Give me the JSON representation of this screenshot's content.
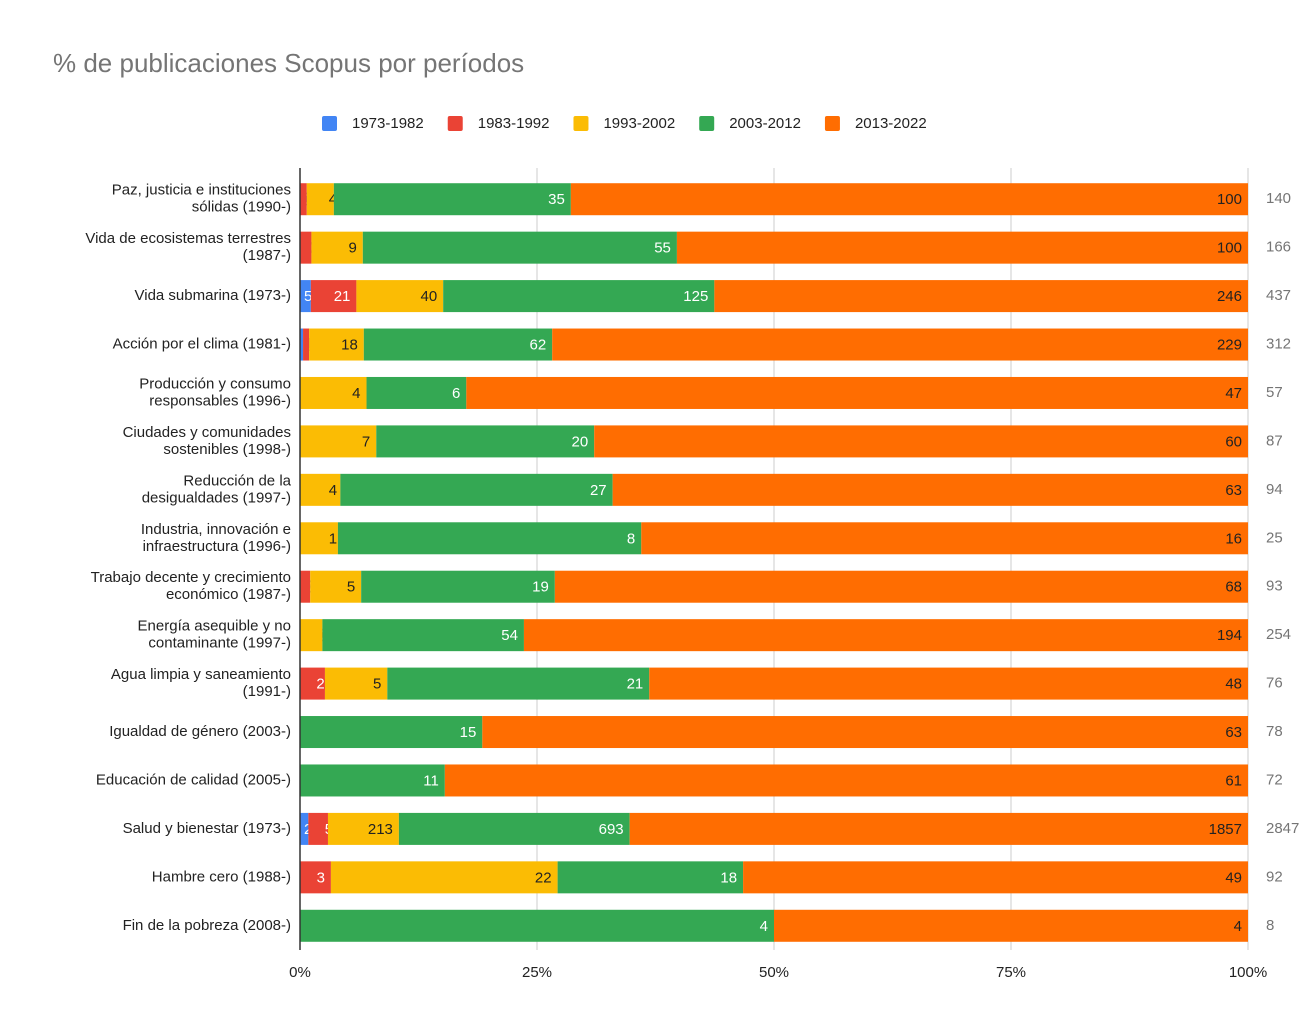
{
  "chart_data": {
    "type": "bar100h",
    "title": "% de publicaciones Scopus por períodos",
    "categories": [
      "Paz, justicia e instituciones\nsólidas (1990-)",
      "Vida de ecosistemas terrestres\n(1987-)",
      "Vida submarina (1973-)",
      "Acción por el clima (1981-)",
      "Producción y consumo\nresponsables (1996-)",
      "Ciudades y comunidades\nsostenibles (1998-)",
      "Reducción de la\ndesigualdades (1997-)",
      "Industria, innovación e\ninfraestructura (1996-)",
      "Trabajo decente y crecimiento\neconómico (1987-)",
      "Energía asequible y no\ncontaminante (1997-)",
      "Agua limpia y saneamiento\n(1991-)",
      "Igualdad de género (2003-)",
      "Educación de calidad (2005-)",
      "Salud y bienestar (1973-)",
      "Hambre cero (1988-)",
      "Fin de la pobreza (2008-)"
    ],
    "series": [
      {
        "name": "1973-1982",
        "color": "#4285f4",
        "values": [
          0,
          0,
          5,
          1,
          0,
          0,
          0,
          0,
          0,
          0,
          0,
          0,
          0,
          25,
          0,
          0
        ]
      },
      {
        "name": "1983-1992",
        "color": "#ea4335",
        "values": [
          1,
          2,
          21,
          2,
          0,
          0,
          0,
          0,
          1,
          0,
          2,
          0,
          0,
          59,
          3,
          0
        ]
      },
      {
        "name": "1993-2002",
        "color": "#fbbc04",
        "values": [
          4,
          9,
          40,
          18,
          4,
          7,
          4,
          1,
          5,
          6,
          5,
          0,
          0,
          213,
          22,
          0
        ]
      },
      {
        "name": "2003-2012",
        "color": "#34a853",
        "values": [
          35,
          55,
          125,
          62,
          6,
          20,
          27,
          8,
          19,
          54,
          21,
          15,
          11,
          693,
          18,
          4
        ]
      },
      {
        "name": "2013-2022",
        "color": "#ff6d01",
        "values": [
          100,
          100,
          246,
          229,
          47,
          60,
          63,
          16,
          68,
          194,
          48,
          63,
          61,
          1857,
          49,
          4
        ]
      }
    ],
    "totals": [
      140,
      166,
      437,
      312,
      57,
      87,
      94,
      25,
      93,
      254,
      76,
      78,
      72,
      2847,
      92,
      8
    ],
    "xlim": [
      0,
      100
    ],
    "xticks": [
      {
        "value": 0,
        "label": "0%"
      },
      {
        "value": 25,
        "label": "25%"
      },
      {
        "value": 50,
        "label": "50%"
      },
      {
        "value": 75,
        "label": "75%"
      },
      {
        "value": 100,
        "label": "100%"
      }
    ],
    "grid": true,
    "legend": "top"
  }
}
